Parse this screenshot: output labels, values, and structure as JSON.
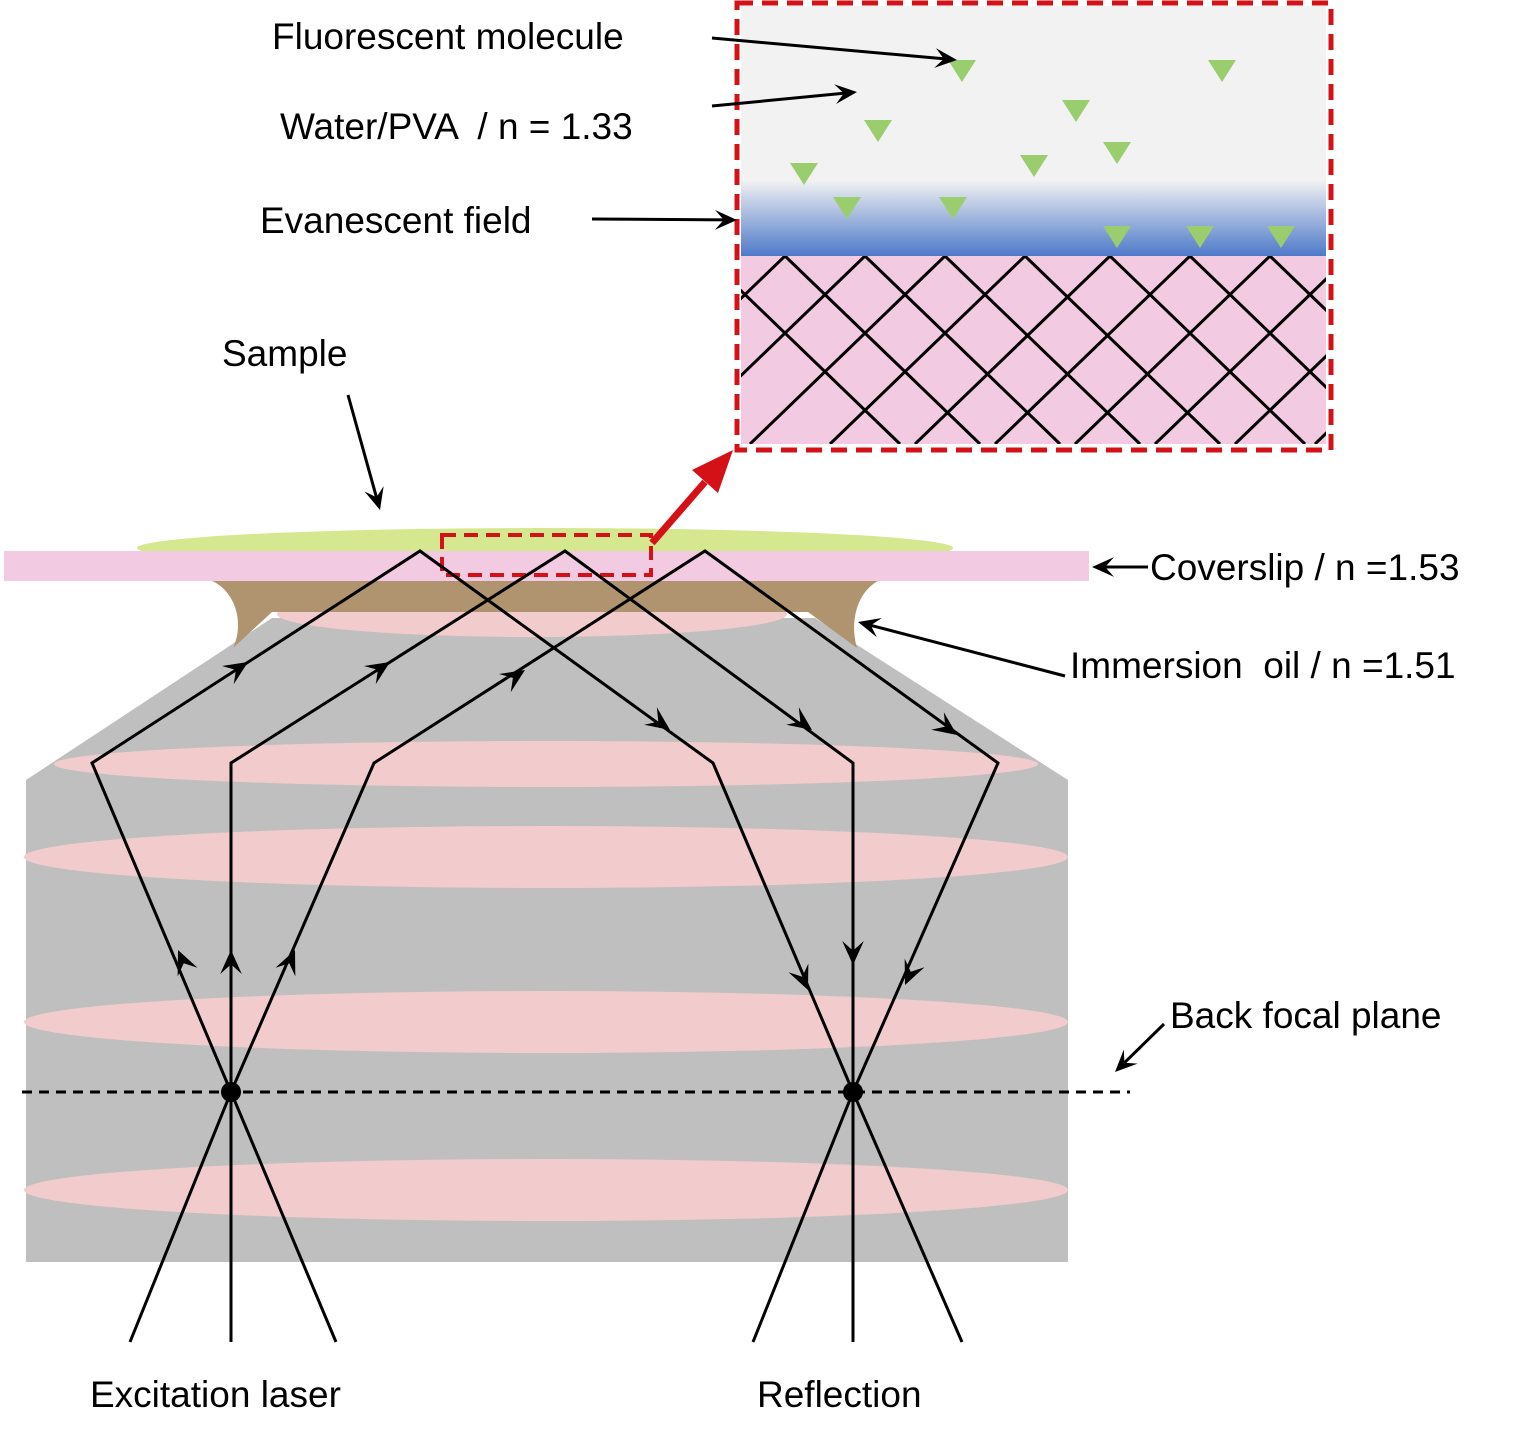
{
  "labels": {
    "fluorescent_molecule": "Fluorescent molecule",
    "water_pva": "Water/PVA  / n = 1.33",
    "evanescent_field": "Evanescent field",
    "sample": "Sample",
    "coverslip": "Coverslip / n =1.53",
    "immersion_oil": "Immersion  oil / n =1.51",
    "back_focal_plane": "Back focal plane",
    "excitation_laser": "Excitation laser",
    "reflection": "Reflection"
  },
  "colors": {
    "objective": "#bfbfbf",
    "lens_element": "#f2cccc",
    "coverslip": "#f2cae2",
    "sample": "#d5e88f",
    "immersion_oil": "#b09470",
    "water": "#f2f2f2",
    "evanescent": "#4a76c8",
    "molecule": "#9acd6e",
    "inset_border": "#d51118",
    "ray": "#000000"
  },
  "icons": {
    "molecule_marker": "green-triangle-icon",
    "focal_point": "black-dot-icon",
    "zoom_arrow": "red-arrow-icon"
  }
}
